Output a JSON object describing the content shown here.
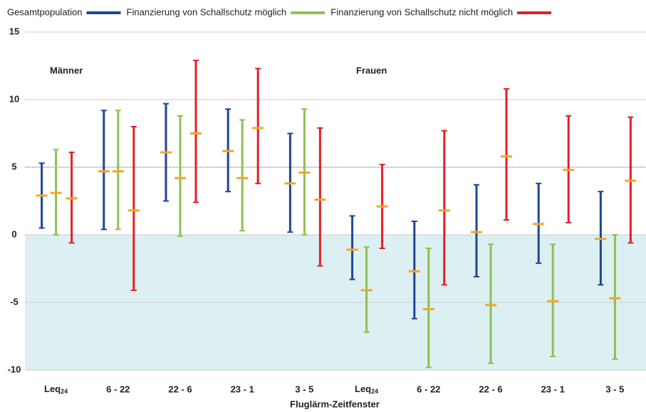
{
  "chart_data": {
    "type": "errorbar",
    "x_label": "Fluglärm-Zeitfenster",
    "annotations": [
      "Männer",
      "Frauen"
    ],
    "categories": [
      "Leq24",
      "6 - 22",
      "22 - 6",
      "23 - 1",
      "3 - 5",
      "Leq24",
      "6 - 22",
      "22 - 6",
      "23 - 1",
      "3 - 5"
    ],
    "ylim": [
      -10,
      15
    ],
    "yticks": [
      -10,
      -5,
      0,
      5,
      10,
      15
    ],
    "grid": true,
    "marker_color": "#f5a623",
    "series": [
      {
        "name": "Gesamtpopulation",
        "color": "#1f4596",
        "values": [
          2.9,
          4.7,
          6.1,
          6.2,
          3.8,
          -1.1,
          -2.7,
          0.2,
          0.8,
          -0.3
        ],
        "low": [
          0.5,
          0.4,
          2.5,
          3.2,
          0.2,
          -3.3,
          -6.2,
          -3.1,
          -2.1,
          -3.7
        ],
        "high": [
          5.3,
          9.2,
          9.7,
          9.3,
          7.5,
          1.4,
          1.0,
          3.7,
          3.8,
          3.2
        ]
      },
      {
        "name": "Finanzierung von Schallschutz möglich",
        "color": "#8cc152",
        "values": [
          3.1,
          4.7,
          4.2,
          4.2,
          4.6,
          -4.1,
          -5.5,
          -5.2,
          -4.9,
          -4.7
        ],
        "low": [
          0.0,
          0.4,
          -0.1,
          0.3,
          0.0,
          -7.2,
          -9.8,
          -9.5,
          -9.0,
          -9.2
        ],
        "high": [
          6.3,
          9.2,
          8.8,
          8.5,
          9.3,
          -0.9,
          -1.0,
          -0.7,
          -0.7,
          0.0
        ]
      },
      {
        "name": "Finanzierung von Schallschutz nicht möglich",
        "color": "#e02027",
        "values": [
          2.7,
          1.8,
          7.5,
          7.9,
          2.6,
          2.1,
          1.8,
          5.8,
          4.8,
          4.0
        ],
        "low": [
          -0.6,
          -4.1,
          2.4,
          3.8,
          -2.3,
          -1.0,
          -3.7,
          1.1,
          0.9,
          -0.6
        ],
        "high": [
          6.1,
          8.0,
          12.9,
          12.3,
          7.9,
          5.2,
          7.7,
          10.8,
          8.8,
          8.7
        ]
      }
    ]
  }
}
